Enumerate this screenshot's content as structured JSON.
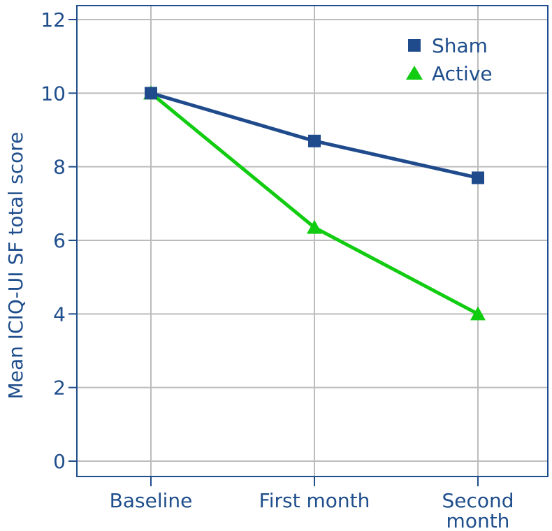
{
  "chart_data": {
    "type": "line",
    "categories": [
      "Baseline",
      "First month",
      "Second month"
    ],
    "category_lines": [
      [
        "Baseline"
      ],
      [
        "First month"
      ],
      [
        "Second",
        "month"
      ]
    ],
    "ylabel": "Mean ICIQ-UI SF total score",
    "xlabel": "",
    "title": "",
    "ylim": [
      0,
      12
    ],
    "yticks": [
      0,
      2,
      4,
      6,
      8,
      10,
      12
    ],
    "grid": true,
    "legend_position": "top-right",
    "series": [
      {
        "name": "Sham",
        "marker": "square",
        "color": "#1f4b8c",
        "values": [
          10.0,
          8.7,
          7.7
        ]
      },
      {
        "name": "Active",
        "marker": "triangle",
        "color": "#11cc11",
        "values": [
          10.0,
          6.35,
          4.0
        ]
      }
    ]
  }
}
